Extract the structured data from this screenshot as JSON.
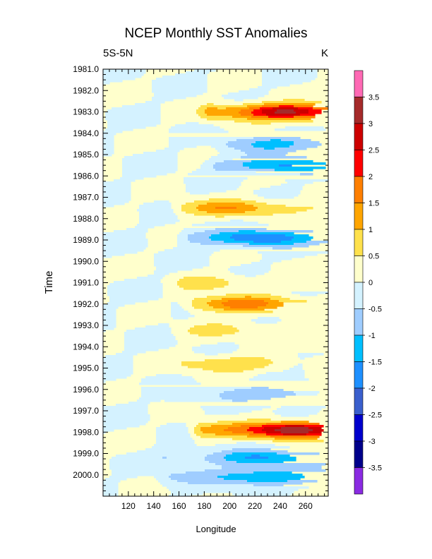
{
  "chart_data": {
    "type": "heatmap",
    "title": "NCEP Monthly SST Anomalies",
    "left_string": "5S-5N",
    "right_string": "K",
    "xlabel": "Longitude",
    "ylabel": "Time",
    "xlim": [
      100,
      278
    ],
    "ylim": [
      1981.0,
      2001.0
    ],
    "x_ticks": [
      120,
      140,
      160,
      180,
      200,
      220,
      240,
      260
    ],
    "x_tick_labels": [
      "120",
      "140",
      "160",
      "180",
      "200",
      "220",
      "240",
      "260"
    ],
    "y_ticks": [
      1981.0,
      1982.0,
      1983.0,
      1984.0,
      1985.0,
      1986.0,
      1987.0,
      1988.0,
      1989.0,
      1990.0,
      1991.0,
      1992.0,
      1993.0,
      1994.0,
      1995.0,
      1996.0,
      1997.0,
      1998.0,
      1999.0,
      2000.0
    ],
    "y_tick_labels": [
      "1981.0",
      "1982.0",
      "1983.0",
      "1984.0",
      "1985.0",
      "1986.0",
      "1987.0",
      "1988.0",
      "1989.0",
      "1990.0",
      "1991.0",
      "1992.0",
      "1993.0",
      "1994.0",
      "1995.0",
      "1996.0",
      "1997.0",
      "1998.0",
      "1999.0",
      "2000.0"
    ],
    "levels": [
      -3.5,
      -3,
      -2.5,
      -2,
      -1.5,
      -1,
      -0.5,
      0,
      0.5,
      1,
      1.5,
      2,
      2.5,
      3,
      3.5
    ],
    "colorbar_labels": [
      "3.5",
      "3",
      "2.5",
      "2",
      "1.5",
      "1",
      "0.5",
      "0",
      "-0.5",
      "-1",
      "-1.5",
      "-2",
      "-2.5",
      "-3",
      "-3.5"
    ],
    "colors": [
      "#8a2be2",
      "#00008b",
      "#0000cd",
      "#3a5fcd",
      "#1e90ff",
      "#00bfff",
      "#9fcdff",
      "#d4f2ff",
      "#ffffcc",
      "#ffe14c",
      "#ffa500",
      "#ff7f00",
      "#ff0000",
      "#cd0000",
      "#a52a2a",
      "#ff69b4"
    ],
    "grid": false,
    "anomaly_features": [
      {
        "time": 1983.0,
        "lon_start": 185,
        "lon_end": 278,
        "peak_lon": 245,
        "peak": 3.2
      },
      {
        "time": 1984.5,
        "lon_start": 200,
        "lon_end": 278,
        "peak_lon": 240,
        "peak": -1.2
      },
      {
        "time": 1985.5,
        "lon_start": 190,
        "lon_end": 278,
        "peak_lon": 240,
        "peak": -1.6
      },
      {
        "time": 1987.5,
        "lon_start": 165,
        "lon_end": 278,
        "peak_lon": 200,
        "peak": 1.4
      },
      {
        "time": 1988.9,
        "lon_start": 170,
        "lon_end": 278,
        "peak_lon": 225,
        "peak": -2.0
      },
      {
        "time": 1991.0,
        "lon_start": 165,
        "lon_end": 240,
        "peak_lon": 185,
        "peak": 0.7
      },
      {
        "time": 1992.0,
        "lon_start": 175,
        "lon_end": 278,
        "peak_lon": 210,
        "peak": 1.8
      },
      {
        "time": 1993.2,
        "lon_start": 165,
        "lon_end": 250,
        "peak_lon": 195,
        "peak": 0.6
      },
      {
        "time": 1994.8,
        "lon_start": 165,
        "lon_end": 240,
        "peak_lon": 200,
        "peak": 1.0
      },
      {
        "time": 1996.2,
        "lon_start": 160,
        "lon_end": 278,
        "peak_lon": 230,
        "peak": -0.9
      },
      {
        "time": 1997.9,
        "lon_start": 180,
        "lon_end": 278,
        "peak_lon": 250,
        "peak": 3.5
      },
      {
        "time": 1999.2,
        "lon_start": 150,
        "lon_end": 278,
        "peak_lon": 225,
        "peak": -1.5
      },
      {
        "time": 2000.1,
        "lon_start": 155,
        "lon_end": 278,
        "peak_lon": 225,
        "peak": -1.6
      }
    ]
  }
}
